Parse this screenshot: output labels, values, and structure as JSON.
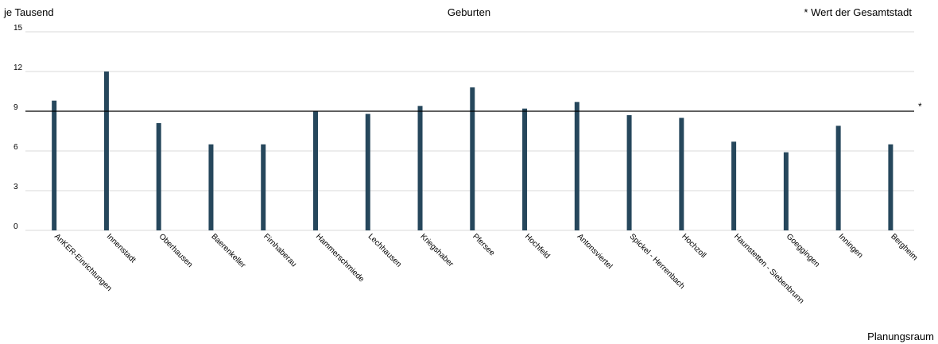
{
  "chart_data": {
    "type": "bar",
    "title": "Geburten",
    "ylabel": "je Tausend",
    "xlabel": "Planungsraum",
    "note": "* Wert der Gesamtstadt",
    "reference_marker": "*",
    "ylim": [
      0,
      15
    ],
    "yticks": [
      "0",
      "3",
      "6",
      "9",
      "12",
      "15"
    ],
    "grid": true,
    "bar_color": "#26475c",
    "categories": [
      "AnKER-Einrichtungen",
      "Innenstadt",
      "Oberhausen",
      "Baerenkeller",
      "Firnhaberau",
      "Hammerschmiede",
      "Lechhausen",
      "Kriegshaber",
      "Pfersee",
      "Hochfeld",
      "Antonsviertel",
      "Spickel - Herrenbach",
      "Hochzoll",
      "Haunstetten - Siebenbrunn",
      "Goeggingen",
      "Inningen",
      "Bergheim"
    ],
    "values": [
      9.8,
      12.0,
      8.1,
      6.5,
      6.5,
      9.0,
      8.8,
      9.4,
      10.8,
      9.2,
      9.7,
      8.7,
      8.5,
      6.7,
      5.9,
      7.9,
      6.5
    ],
    "reference_value": 9.0
  }
}
